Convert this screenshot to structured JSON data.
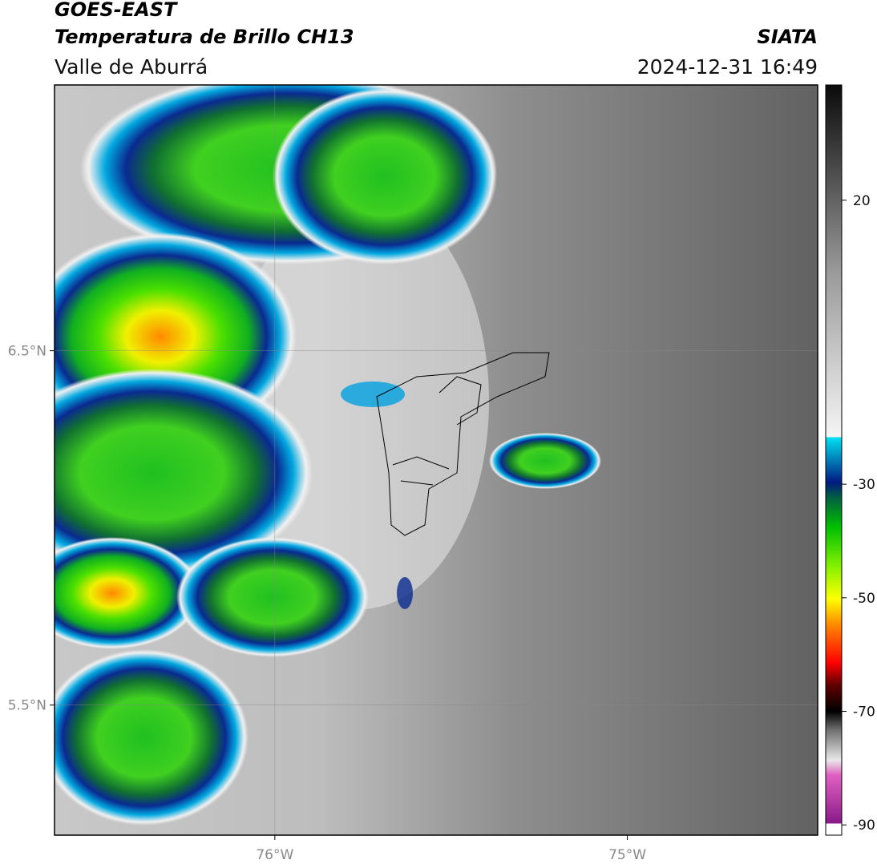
{
  "header": {
    "title": "GOES-EAST",
    "subtitle": "Temperatura de Brillo CH13",
    "region": "Valle de Aburrá",
    "source": "SIATA",
    "datetime": "2024-12-31 16:49"
  },
  "map": {
    "latlim": [
      5.133,
      7.25
    ],
    "lonlim": [
      -76.625,
      -74.46
    ],
    "latticks": [
      {
        "value": 6.5,
        "label": "6.5°N"
      },
      {
        "value": 5.5,
        "label": "5.5°N"
      }
    ],
    "lonticks": [
      {
        "value": -76,
        "label": "76°W"
      },
      {
        "value": -75,
        "label": "75°W"
      }
    ]
  },
  "colorbar": {
    "lim": [
      -91.8,
      40.3
    ],
    "ticks": [
      20,
      -30,
      -50,
      -70,
      -90
    ]
  }
}
